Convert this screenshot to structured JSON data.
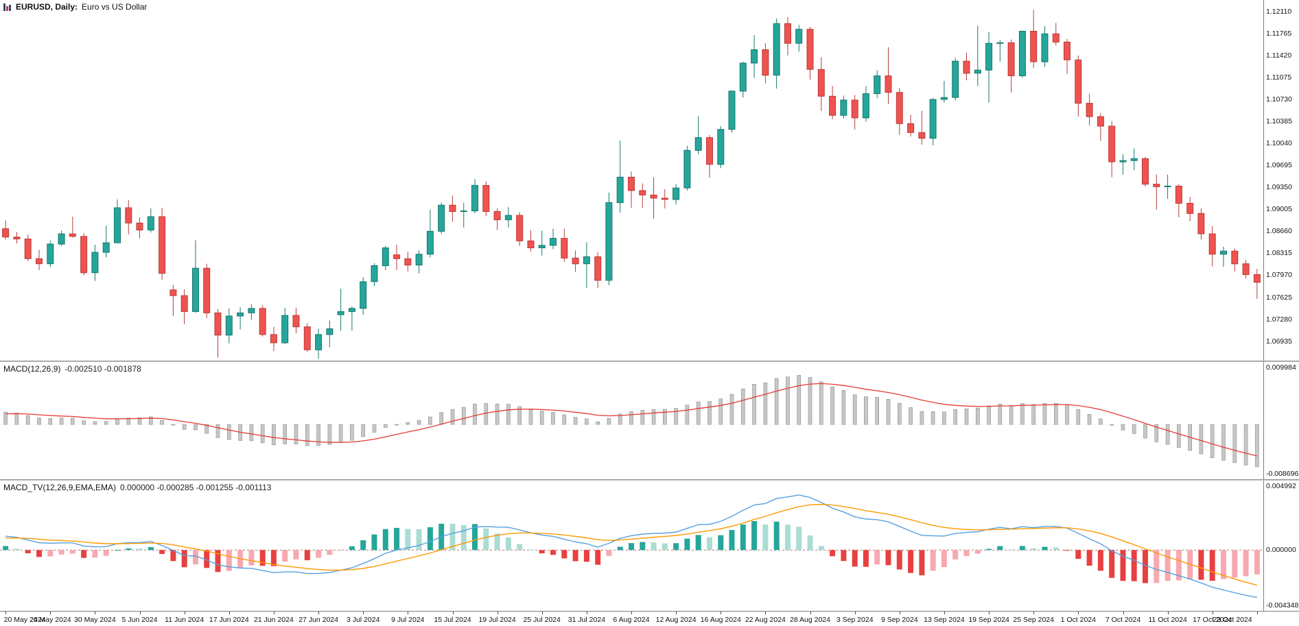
{
  "header": {
    "symbol": "EURUSD, Daily:",
    "description": "Euro vs US Dollar",
    "icon": "candlestick-chart-icon"
  },
  "panels": {
    "macd": {
      "title": "MACD(12,26,9)",
      "values": "-0.002510 -0.001878"
    },
    "macd_tv": {
      "title": "MACD_TV(12,26,9,EMA,EMA)",
      "values": "0.000000 -0.000285 -0.001255 -0.001113"
    }
  },
  "colors": {
    "background": "#ffffff",
    "bull": "#26a69a",
    "bull_border": "#17776e",
    "bear": "#ef5350",
    "bear_border": "#b63c39",
    "macd_hist": "#c7c7c7",
    "macd_hist_border": "#8c8c8c",
    "macd_signal": "#e53935",
    "tv_line_macd": "#55a0e0",
    "tv_line_signal": "#ff9800",
    "tv_up_strong": "#26a69a",
    "tv_up_weak": "#aadcd4",
    "tv_down_strong": "#e84040",
    "tv_down_weak": "#f6a9b0",
    "zero_line": "#b0736f",
    "zero_line_faint": "#d6d6d6",
    "axis_text": "#111111",
    "divider": "#8f8f8f"
  },
  "chart_data": {
    "type": "candlestick",
    "title": "EURUSD Daily - Euro vs US Dollar",
    "timeframe": "Daily",
    "x_step": 4,
    "x_labels": [
      "20 May 2024",
      "24 May 2024",
      "30 May 2024",
      "5 Jun 2024",
      "11 Jun 2024",
      "17 Jun 2024",
      "21 Jun 2024",
      "27 Jun 2024",
      "3 Jul 2024",
      "9 Jul 2024",
      "15 Jul 2024",
      "19 Jul 2024",
      "25 Jul 2024",
      "31 Jul 2024",
      "6 Aug 2024",
      "12 Aug 2024",
      "16 Aug 2024",
      "22 Aug 2024",
      "28 Aug 2024",
      "3 Sep 2024",
      "9 Sep 2024",
      "13 Sep 2024",
      "19 Sep 2024",
      "25 Sep 2024",
      "1 Oct 2024",
      "7 Oct 2024",
      "11 Oct 2024",
      "17 Oct 2024",
      "23 Oct 2024"
    ],
    "price_labels": [
      "1.12110",
      "1.11765",
      "1.11420",
      "1.11075",
      "1.10730",
      "1.10385",
      "1.10040",
      "1.09695",
      "1.09350",
      "1.09005",
      "1.08660",
      "1.08315",
      "1.07970",
      "1.07625",
      "1.07280",
      "1.06935"
    ],
    "ylim": [
      1.0663,
      1.1229
    ],
    "ohlc": [
      [
        1.087,
        1.0883,
        1.0853,
        1.0857
      ],
      [
        1.0857,
        1.0865,
        1.0847,
        1.0854
      ],
      [
        1.0854,
        1.0861,
        1.0819,
        1.0823
      ],
      [
        1.0823,
        1.0837,
        1.0805,
        1.0815
      ],
      [
        1.0815,
        1.0852,
        1.081,
        1.0846
      ],
      [
        1.0846,
        1.0867,
        1.0843,
        1.0862
      ],
      [
        1.0862,
        1.0889,
        1.0856,
        1.0858
      ],
      [
        1.0858,
        1.0863,
        1.0797,
        1.0801
      ],
      [
        1.0801,
        1.0845,
        1.0788,
        1.0833
      ],
      [
        1.0833,
        1.0875,
        1.0825,
        1.0848
      ],
      [
        1.0848,
        1.0916,
        1.0847,
        1.0903
      ],
      [
        1.0903,
        1.0915,
        1.0861,
        1.0879
      ],
      [
        1.0879,
        1.0888,
        1.0855,
        1.0868
      ],
      [
        1.0868,
        1.0902,
        1.0864,
        1.0889
      ],
      [
        1.0889,
        1.0903,
        1.079,
        1.08
      ],
      [
        1.0774,
        1.0782,
        1.0733,
        1.0765
      ],
      [
        1.0765,
        1.0775,
        1.072,
        1.074
      ],
      [
        1.074,
        1.0852,
        1.0738,
        1.0808
      ],
      [
        1.0808,
        1.0815,
        1.073,
        1.0738
      ],
      [
        1.0738,
        1.0744,
        1.0668,
        1.0703
      ],
      [
        1.0703,
        1.0745,
        1.069,
        1.0733
      ],
      [
        1.0733,
        1.0747,
        1.0712,
        1.0738
      ],
      [
        1.0738,
        1.0752,
        1.0727,
        1.0745
      ],
      [
        1.0745,
        1.075,
        1.0701,
        1.0704
      ],
      [
        1.0704,
        1.0716,
        1.0678,
        1.0691
      ],
      [
        1.0691,
        1.0746,
        1.0689,
        1.0734
      ],
      [
        1.0734,
        1.0746,
        1.0706,
        1.0716
      ],
      [
        1.0716,
        1.0722,
        1.0677,
        1.068
      ],
      [
        1.068,
        1.0713,
        1.0666,
        1.0704
      ],
      [
        1.0704,
        1.0726,
        1.0684,
        1.0713
      ],
      [
        1.0735,
        1.0776,
        1.071,
        1.074
      ],
      [
        1.074,
        1.0748,
        1.071,
        1.0745
      ],
      [
        1.0745,
        1.0794,
        1.0735,
        1.0787
      ],
      [
        1.0787,
        1.0816,
        1.078,
        1.0812
      ],
      [
        1.0812,
        1.0843,
        1.0805,
        1.084
      ],
      [
        1.0829,
        1.0845,
        1.0805,
        1.0823
      ],
      [
        1.0823,
        1.0834,
        1.0803,
        1.0813
      ],
      [
        1.0813,
        1.0836,
        1.08,
        1.083
      ],
      [
        1.083,
        1.09,
        1.0825,
        1.0866
      ],
      [
        1.0866,
        1.0911,
        1.0862,
        1.0907
      ],
      [
        1.0907,
        1.0922,
        1.0881,
        1.0897
      ],
      [
        1.0897,
        1.0911,
        1.0872,
        1.0898
      ],
      [
        1.0898,
        1.0948,
        1.0894,
        1.0938
      ],
      [
        1.0938,
        1.0944,
        1.089,
        1.0897
      ],
      [
        1.0897,
        1.0902,
        1.0868,
        1.0884
      ],
      [
        1.0884,
        1.0904,
        1.0872,
        1.0891
      ],
      [
        1.0891,
        1.0896,
        1.0843,
        1.0851
      ],
      [
        1.0851,
        1.0868,
        1.0834,
        1.084
      ],
      [
        1.084,
        1.0867,
        1.0828,
        1.0844
      ],
      [
        1.0844,
        1.087,
        1.0838,
        1.0855
      ],
      [
        1.0855,
        1.087,
        1.0818,
        1.0824
      ],
      [
        1.0824,
        1.0836,
        1.0802,
        1.0815
      ],
      [
        1.0815,
        1.0849,
        1.0777,
        1.0826
      ],
      [
        1.0826,
        1.0833,
        1.0777,
        1.0789
      ],
      [
        1.0789,
        1.0927,
        1.0781,
        1.0911
      ],
      [
        1.0911,
        1.1008,
        1.0895,
        1.0951
      ],
      [
        1.0951,
        1.096,
        1.0903,
        1.093
      ],
      [
        1.093,
        1.0941,
        1.0903,
        1.0923
      ],
      [
        1.0923,
        1.0951,
        1.0886,
        1.0918
      ],
      [
        1.0918,
        1.0932,
        1.0902,
        1.0916
      ],
      [
        1.0916,
        1.094,
        1.0908,
        1.0934
      ],
      [
        1.0934,
        1.1,
        1.093,
        1.0993
      ],
      [
        1.0993,
        1.1047,
        1.0987,
        1.1013
      ],
      [
        1.1013,
        1.1017,
        1.095,
        1.0971
      ],
      [
        1.0971,
        1.1031,
        1.0965,
        1.1026
      ],
      [
        1.1026,
        1.1087,
        1.1021,
        1.1086
      ],
      [
        1.1086,
        1.1132,
        1.1076,
        1.113
      ],
      [
        1.113,
        1.1174,
        1.1107,
        1.1151
      ],
      [
        1.1151,
        1.1161,
        1.1098,
        1.1111
      ],
      [
        1.1111,
        1.12,
        1.109,
        1.1192
      ],
      [
        1.1192,
        1.1202,
        1.1142,
        1.1161
      ],
      [
        1.1161,
        1.119,
        1.1148,
        1.1183
      ],
      [
        1.1183,
        1.1187,
        1.1104,
        1.112
      ],
      [
        1.112,
        1.1139,
        1.1055,
        1.1078
      ],
      [
        1.1078,
        1.1094,
        1.1042,
        1.1048
      ],
      [
        1.1048,
        1.1079,
        1.1043,
        1.1072
      ],
      [
        1.1072,
        1.108,
        1.1026,
        1.1044
      ],
      [
        1.1044,
        1.1094,
        1.1038,
        1.1082
      ],
      [
        1.1082,
        1.1119,
        1.1075,
        1.111
      ],
      [
        1.111,
        1.1155,
        1.1066,
        1.1084
      ],
      [
        1.1084,
        1.1091,
        1.1017,
        1.1035
      ],
      [
        1.1035,
        1.1049,
        1.1015,
        1.1021
      ],
      [
        1.1021,
        1.1055,
        1.1002,
        1.1012
      ],
      [
        1.1012,
        1.1075,
        1.1001,
        1.1073
      ],
      [
        1.1073,
        1.1102,
        1.1068,
        1.1076
      ],
      [
        1.1076,
        1.1138,
        1.1071,
        1.1133
      ],
      [
        1.1133,
        1.1146,
        1.1103,
        1.1114
      ],
      [
        1.1114,
        1.1189,
        1.1094,
        1.1119
      ],
      [
        1.1119,
        1.1179,
        1.1068,
        1.1161
      ],
      [
        1.1161,
        1.1166,
        1.1132,
        1.1162
      ],
      [
        1.1162,
        1.1167,
        1.1084,
        1.111
      ],
      [
        1.111,
        1.1181,
        1.1107,
        1.118
      ],
      [
        1.118,
        1.1214,
        1.1122,
        1.1132
      ],
      [
        1.1132,
        1.1188,
        1.1124,
        1.1176
      ],
      [
        1.1176,
        1.1193,
        1.1158,
        1.1163
      ],
      [
        1.1163,
        1.1168,
        1.1113,
        1.1135
      ],
      [
        1.1135,
        1.1142,
        1.1046,
        1.1067
      ],
      [
        1.1067,
        1.1082,
        1.1032,
        1.1046
      ],
      [
        1.1046,
        1.1051,
        1.1008,
        1.1031
      ],
      [
        1.1031,
        1.1039,
        1.0951,
        1.0975
      ],
      [
        1.0975,
        1.0987,
        1.0955,
        1.0977
      ],
      [
        1.0977,
        1.0996,
        1.0962,
        1.098
      ],
      [
        1.098,
        1.0983,
        1.0936,
        1.094
      ],
      [
        1.094,
        1.0955,
        1.09,
        1.0936
      ],
      [
        1.0936,
        1.0955,
        1.0917,
        1.0937
      ],
      [
        1.0937,
        1.094,
        1.0888,
        1.091
      ],
      [
        1.091,
        1.092,
        1.0882,
        1.0894
      ],
      [
        1.0894,
        1.0902,
        1.0853,
        1.0862
      ],
      [
        1.0862,
        1.0874,
        1.0811,
        1.083
      ],
      [
        1.083,
        1.0842,
        1.081,
        1.0835
      ],
      [
        1.0835,
        1.0839,
        1.0803,
        1.0815
      ],
      [
        1.0815,
        1.0821,
        1.0792,
        1.0798
      ],
      [
        1.0798,
        1.0807,
        1.076,
        1.0786
      ]
    ],
    "indicators": {
      "macd": {
        "name": "MACD",
        "params": [
          12,
          26,
          9
        ],
        "ylim": [
          -0.008696,
          0.009984
        ],
        "axis_labels": {
          "max": "0.009984",
          "min": "-0.008696"
        },
        "seed": {
          "fast_offset": 0.0,
          "slow_offset": -0.0021,
          "signal": 0.0018
        }
      },
      "macd_tv": {
        "name": "MACD_TV",
        "params": [
          12,
          26,
          9,
          "EMA",
          "EMA"
        ],
        "ylim": [
          -0.004348,
          0.004992
        ],
        "axis_labels": {
          "max": "0.004992",
          "zero": "0.000000",
          "min": "-0.004348"
        },
        "line_scale": 0.5
      }
    }
  }
}
